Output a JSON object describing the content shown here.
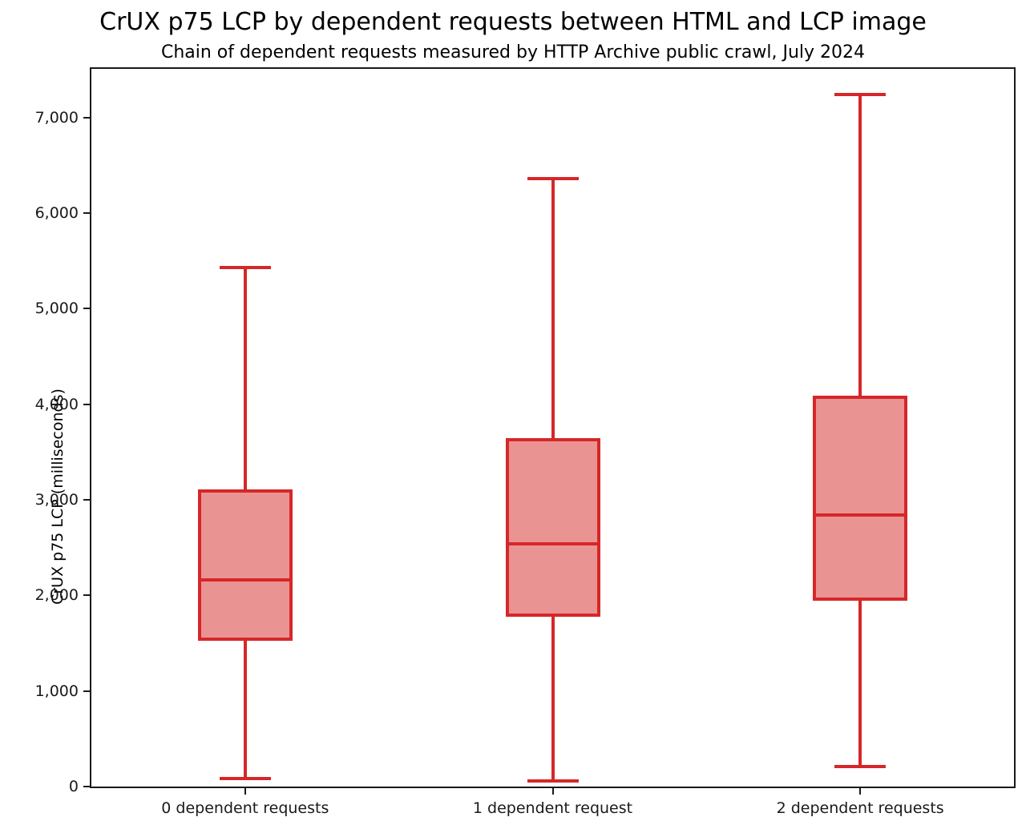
{
  "chart_data": {
    "type": "boxplot",
    "title": "CrUX p75 LCP by dependent requests between HTML and LCP image",
    "subtitle": "Chain of dependent requests measured by HTTP Archive public crawl, July 2024",
    "xlabel": "",
    "ylabel": "CrUX p75 LCP (milliseconds)",
    "ylim": [
      0,
      7510
    ],
    "grid": false,
    "legend": false,
    "yticks": [
      {
        "value": 0,
        "label": "0"
      },
      {
        "value": 1000,
        "label": "1,000"
      },
      {
        "value": 2000,
        "label": "2,000"
      },
      {
        "value": 3000,
        "label": "3,000"
      },
      {
        "value": 4000,
        "label": "4,000"
      },
      {
        "value": 5000,
        "label": "5,000"
      },
      {
        "value": 6000,
        "label": "6,000"
      },
      {
        "value": 7000,
        "label": "7,000"
      }
    ],
    "categories": [
      "0 dependent requests",
      "1 dependent request",
      "2 dependent requests"
    ],
    "series": [
      {
        "category": "0 dependent requests",
        "whisker_low": 80,
        "q1": 1540,
        "median": 2160,
        "q3": 3090,
        "whisker_high": 5430
      },
      {
        "category": "1 dependent request",
        "whisker_low": 60,
        "q1": 1790,
        "median": 2540,
        "q3": 3630,
        "whisker_high": 6360
      },
      {
        "category": "2 dependent requests",
        "whisker_low": 210,
        "q1": 1960,
        "median": 2840,
        "q3": 4070,
        "whisker_high": 7240
      }
    ],
    "colors": {
      "box_edge": "#d62728",
      "box_fill": "#ea9393",
      "spine": "#1a1a1a",
      "text": "#000000"
    }
  }
}
